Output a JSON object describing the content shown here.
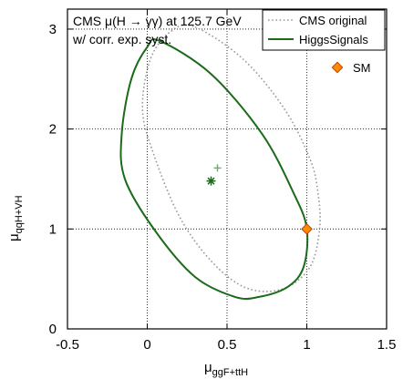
{
  "chart_data": {
    "type": "scatter",
    "title_line1": "CMS μ(H → γγ) at 125.7 GeV",
    "title_line2": "w/ corr. exp. syst.",
    "xlabel_main": "μ",
    "xlabel_sub": "ggF+ttH",
    "ylabel_main": "μ",
    "ylabel_sub": "qqH+VH",
    "xlim": [
      -0.5,
      1.5
    ],
    "ylim": [
      0,
      3.2
    ],
    "xticks": [
      -0.5,
      0,
      0.5,
      1,
      1.5
    ],
    "xtick_labels": [
      "-0.5",
      "0",
      "0.5",
      "1",
      "1.5"
    ],
    "yticks": [
      0,
      1,
      2,
      3
    ],
    "ytick_labels": [
      "0",
      "1",
      "2",
      "3"
    ],
    "grid": true,
    "legend_position": "top-right",
    "series": [
      {
        "name": "CMS original",
        "kind": "contour",
        "style": "dotted",
        "color": "#999999",
        "points": [
          [
            0.3,
            3.02
          ],
          [
            0.6,
            2.7
          ],
          [
            0.86,
            2.2
          ],
          [
            1.02,
            1.7
          ],
          [
            1.07,
            1.36
          ],
          [
            1.08,
            1.0
          ],
          [
            1.02,
            0.62
          ],
          [
            0.85,
            0.4
          ],
          [
            0.62,
            0.41
          ],
          [
            0.4,
            0.68
          ],
          [
            0.2,
            1.13
          ],
          [
            0.04,
            1.75
          ],
          [
            -0.03,
            2.2
          ],
          [
            0.02,
            2.7
          ],
          [
            0.15,
            2.98
          ]
        ],
        "best_fit": [
          0.44,
          1.61
        ]
      },
      {
        "name": "HiggsSignals",
        "kind": "contour",
        "style": "solid",
        "color": "#1b6b1b",
        "points": [
          [
            0.08,
            2.88
          ],
          [
            0.4,
            2.55
          ],
          [
            0.72,
            1.95
          ],
          [
            0.92,
            1.35
          ],
          [
            1.0,
            1.0
          ],
          [
            0.98,
            0.62
          ],
          [
            0.88,
            0.42
          ],
          [
            0.7,
            0.32
          ],
          [
            0.55,
            0.32
          ],
          [
            0.3,
            0.52
          ],
          [
            0.05,
            0.98
          ],
          [
            -0.14,
            1.5
          ],
          [
            -0.16,
            1.95
          ],
          [
            -0.1,
            2.5
          ],
          [
            0.0,
            2.82
          ]
        ],
        "best_fit": [
          0.4,
          1.48
        ]
      }
    ],
    "reference_point": {
      "name": "SM",
      "x": 1.0,
      "y": 1.0,
      "color": "#ff8c00"
    }
  }
}
